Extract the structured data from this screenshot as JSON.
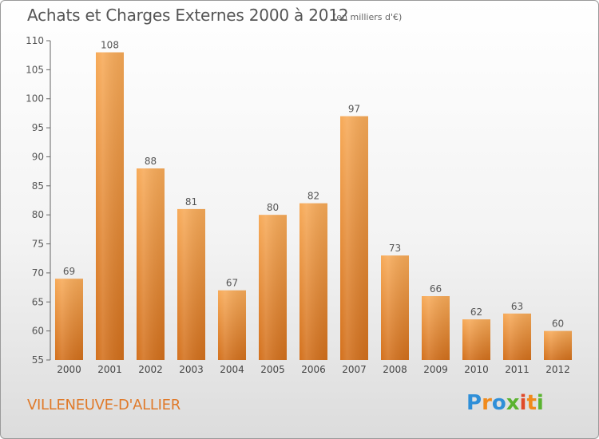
{
  "title": "Achats et Charges Externes 2000 à 2012",
  "subtitle": "(en milliers d'€)",
  "commune": "VILLENEUVE-D'ALLIER",
  "logo": {
    "letters": [
      "P",
      "r",
      "o",
      "x",
      "i",
      "t",
      "i"
    ],
    "colors": [
      "#2f8fd8",
      "#f08a1c",
      "#2f8fd8",
      "#5ab330",
      "#e04a2a",
      "#f08a1c",
      "#5ab330"
    ]
  },
  "colors": {
    "bar_light": "#f6a552",
    "bar_dark": "#d8751f",
    "text": "#555555",
    "commune": "#e07a2a"
  },
  "chart_data": {
    "type": "bar",
    "title": "Achats et Charges Externes 2000 à 2012",
    "subtitle": "(en milliers d'€)",
    "categories": [
      "2000",
      "2001",
      "2002",
      "2003",
      "2004",
      "2005",
      "2006",
      "2007",
      "2008",
      "2009",
      "2010",
      "2011",
      "2012"
    ],
    "values": [
      69,
      108,
      88,
      81,
      67,
      80,
      82,
      97,
      73,
      66,
      62,
      63,
      60
    ],
    "ylim": [
      55,
      110
    ],
    "yticks": [
      55,
      60,
      65,
      70,
      75,
      80,
      85,
      90,
      95,
      100,
      105,
      110
    ],
    "grid": false,
    "xlabel": "",
    "ylabel": ""
  }
}
